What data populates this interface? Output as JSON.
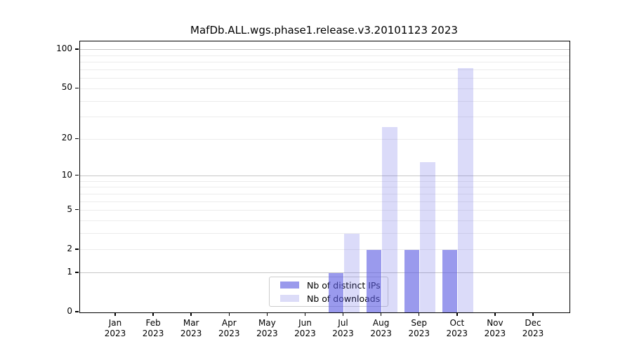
{
  "chart_data": {
    "type": "bar",
    "title": "MafDb.ALL.wgs.phase1.release.v3.20101123 2023",
    "categories": [
      "Jan",
      "Feb",
      "Mar",
      "Apr",
      "May",
      "Jun",
      "Jul",
      "Aug",
      "Sep",
      "Oct",
      "Nov",
      "Dec"
    ],
    "category_year": "2023",
    "series": [
      {
        "name": "Nb of distinct IPs",
        "values": [
          0,
          0,
          0,
          0,
          0,
          0,
          1,
          2,
          2,
          2,
          0,
          0
        ],
        "bar_color": "rgba(92,92,226,0.62)",
        "legend_color": "#9a9aec"
      },
      {
        "name": "Nb of downloads",
        "values": [
          0,
          0,
          0,
          0,
          0,
          0,
          3,
          25,
          13,
          72,
          0,
          0
        ],
        "bar_color": "rgba(92,92,226,0.22)",
        "legend_color": "#dcdcf8"
      }
    ],
    "yscale": "log1p",
    "ylim": [
      0,
      116
    ],
    "yticks": [
      0,
      1,
      2,
      5,
      10,
      20,
      50,
      100
    ],
    "gridlines": {
      "major": [
        1,
        10,
        100
      ],
      "minor": [
        2,
        3,
        4,
        5,
        6,
        7,
        8,
        9,
        20,
        30,
        40,
        50,
        60,
        70,
        80,
        90
      ],
      "major_color": "#c6c6c6",
      "minor_color": "#ececec"
    },
    "legend": {
      "position": "inside-bottom-center",
      "items": [
        "Nb of distinct IPs",
        "Nb of downloads"
      ]
    },
    "background": "#ffffff",
    "text_color": "#000000"
  }
}
